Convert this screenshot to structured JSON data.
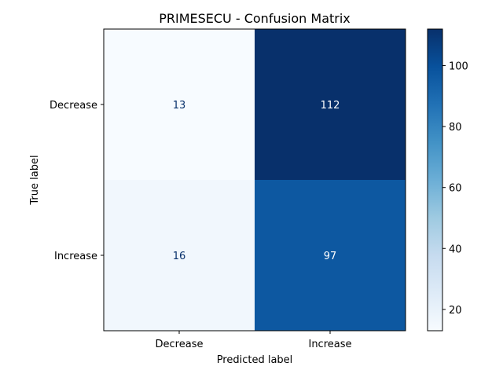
{
  "chart_data": {
    "type": "heatmap",
    "title": "PRIMESECU - Confusion Matrix",
    "xlabel": "Predicted label",
    "ylabel": "True label",
    "x_categories": [
      "Decrease",
      "Increase"
    ],
    "y_categories": [
      "Decrease",
      "Increase"
    ],
    "values": [
      [
        13,
        112
      ],
      [
        16,
        97
      ]
    ],
    "colormap": "Blues",
    "colorbar": {
      "min": 13,
      "max": 112,
      "ticks": [
        20,
        40,
        60,
        80,
        100
      ]
    },
    "colors": {
      "low": "#f7fbff",
      "high": "#08306b",
      "text_light": "#ffffff",
      "text_dark": "#08306b"
    }
  }
}
